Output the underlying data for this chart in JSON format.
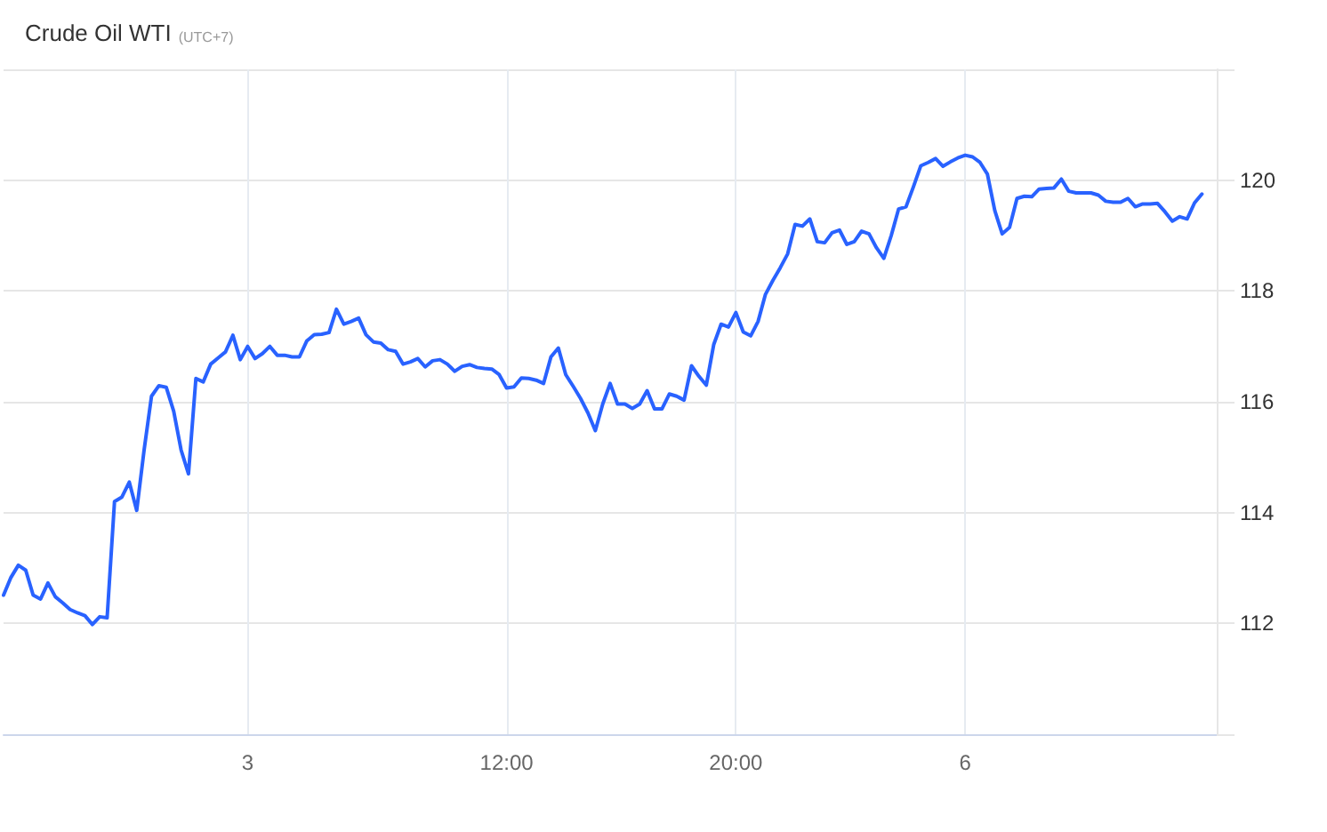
{
  "chart_data": {
    "type": "line",
    "title": "Crude Oil WTI",
    "subtitle": "(UTC+7)",
    "categories": [
      null,
      null,
      null,
      null,
      null,
      null,
      null,
      null,
      null,
      null,
      null,
      null,
      null,
      null,
      null,
      null,
      null,
      null,
      null,
      null,
      null,
      null,
      null,
      null,
      null,
      null,
      null,
      null,
      null,
      null,
      null,
      null,
      null,
      "3",
      null,
      null,
      null,
      null,
      null,
      null,
      null,
      null,
      null,
      null,
      null,
      null,
      null,
      null,
      null,
      null,
      null,
      null,
      null,
      null,
      null,
      null,
      null,
      null,
      null,
      null,
      null,
      null,
      null,
      null,
      null,
      null,
      null,
      null,
      "12:00",
      null,
      null,
      null,
      null,
      null,
      null,
      null,
      null,
      null,
      null,
      null,
      null,
      null,
      null,
      null,
      null,
      null,
      null,
      null,
      null,
      null,
      null,
      null,
      null,
      null,
      null,
      null,
      null,
      null,
      null,
      "20:00",
      null,
      null,
      null,
      null,
      null,
      null,
      null,
      null,
      null,
      null,
      null,
      null,
      null,
      null,
      null,
      null,
      null,
      null,
      null,
      null,
      null,
      null,
      null,
      null,
      null,
      null,
      null,
      null,
      null,
      null,
      "6",
      null,
      null,
      null,
      null,
      null,
      null,
      null,
      null,
      null,
      null,
      null,
      null,
      null,
      null,
      null,
      null,
      null,
      null,
      null,
      null,
      null,
      null,
      null,
      null,
      null,
      null,
      null,
      null,
      null,
      null,
      null,
      null,
      null,
      null
    ],
    "series": [
      {
        "color": "#2962ff",
        "values": [
          112.51,
          112.83,
          113.05,
          112.96,
          112.51,
          112.44,
          112.73,
          112.48,
          112.37,
          112.25,
          112.19,
          112.14,
          111.98,
          112.12,
          112.1,
          114.2,
          114.28,
          114.55,
          114.04,
          115.13,
          116.1,
          116.29,
          116.26,
          115.83,
          115.13,
          114.7,
          116.42,
          116.36,
          116.68,
          116.79,
          116.9,
          117.2,
          116.76,
          117.0,
          116.78,
          116.87,
          117.0,
          116.84,
          116.84,
          116.81,
          116.81,
          117.1,
          117.21,
          117.22,
          117.25,
          117.67,
          117.4,
          117.45,
          117.51,
          117.21,
          117.08,
          117.06,
          116.94,
          116.91,
          116.68,
          116.72,
          116.78,
          116.63,
          116.74,
          116.76,
          116.68,
          116.55,
          116.64,
          116.67,
          116.62,
          116.6,
          116.59,
          116.49,
          116.25,
          116.27,
          116.43,
          116.42,
          116.39,
          116.33,
          116.81,
          116.97,
          116.49,
          116.28,
          116.06,
          115.8,
          115.48,
          115.96,
          116.33,
          115.96,
          115.96,
          115.88,
          115.96,
          116.2,
          115.87,
          115.87,
          116.14,
          116.1,
          116.03,
          116.65,
          116.46,
          116.3,
          117.03,
          117.4,
          117.35,
          117.61,
          117.26,
          117.19,
          117.45,
          117.94,
          118.19,
          118.42,
          118.67,
          119.2,
          119.17,
          119.3,
          118.89,
          118.87,
          119.05,
          119.1,
          118.84,
          118.89,
          119.08,
          119.03,
          118.78,
          118.59,
          119.0,
          119.48,
          119.52,
          119.88,
          120.26,
          120.32,
          120.39,
          120.25,
          120.33,
          120.4,
          120.45,
          120.42,
          120.32,
          120.11,
          119.45,
          119.03,
          119.15,
          119.67,
          119.71,
          119.7,
          119.84,
          119.85,
          119.86,
          120.02,
          119.8,
          119.77,
          119.77,
          119.77,
          119.73,
          119.62,
          119.6,
          119.6,
          119.67,
          119.52,
          119.57,
          119.57,
          119.58,
          119.43,
          119.26,
          119.34,
          119.3,
          119.59,
          119.75,
          null,
          null
        ]
      }
    ],
    "ylim": [
      110,
      122
    ],
    "yticks": [
      {
        "value": 110,
        "label": null
      },
      112,
      114,
      116,
      118,
      120,
      {
        "value": 122,
        "label": null
      }
    ],
    "grid": true
  }
}
